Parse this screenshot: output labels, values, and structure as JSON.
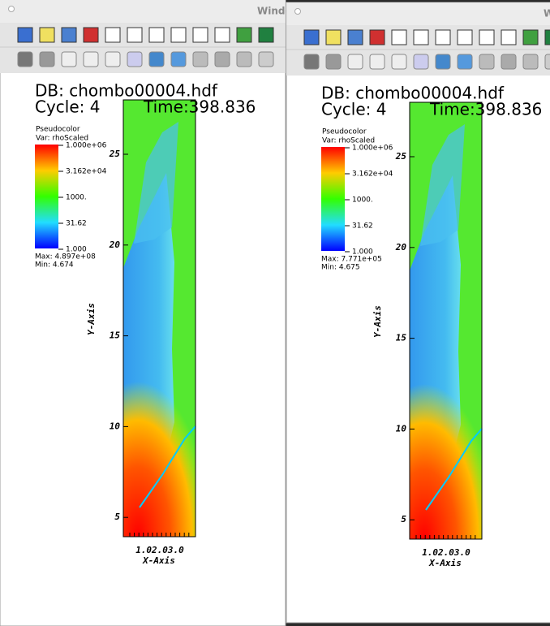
{
  "windows": [
    {
      "title": "Windo",
      "db": "DB: chombo00004.hdf",
      "cycle": "Cycle: 4",
      "time": "Time:398.836",
      "legend": {
        "title": "Pseudocolor",
        "variable": "Var: rhoScaled",
        "labels": [
          "1.000e+06",
          "3.162e+04",
          "1000.",
          "31.62",
          "1.000"
        ],
        "max": "Max:  4.897e+08",
        "min": "Min:  4.674"
      },
      "y_axis": {
        "label": "Y-Axis",
        "ticks": [
          "25",
          "20",
          "15",
          "10",
          "5"
        ]
      },
      "x_axis": {
        "label": "X-Axis",
        "ticks": "1.02.03.0"
      }
    },
    {
      "title": "W",
      "db": "DB: chombo00004.hdf",
      "cycle": "Cycle: 4",
      "time": "Time:398.836",
      "legend": {
        "title": "Pseudocolor",
        "variable": "Var: rhoScaled",
        "labels": [
          "1.000e+06",
          "3.162e+04",
          "1000.",
          "31.62",
          "1.000"
        ],
        "max": "Max:  7.771e+05",
        "min": "Min:  4.675"
      },
      "y_axis": {
        "label": "Y-Axis",
        "ticks": [
          "25",
          "20",
          "15",
          "10",
          "5"
        ]
      },
      "x_axis": {
        "label": "X-Axis",
        "ticks": "1.02.03.0"
      }
    }
  ]
}
